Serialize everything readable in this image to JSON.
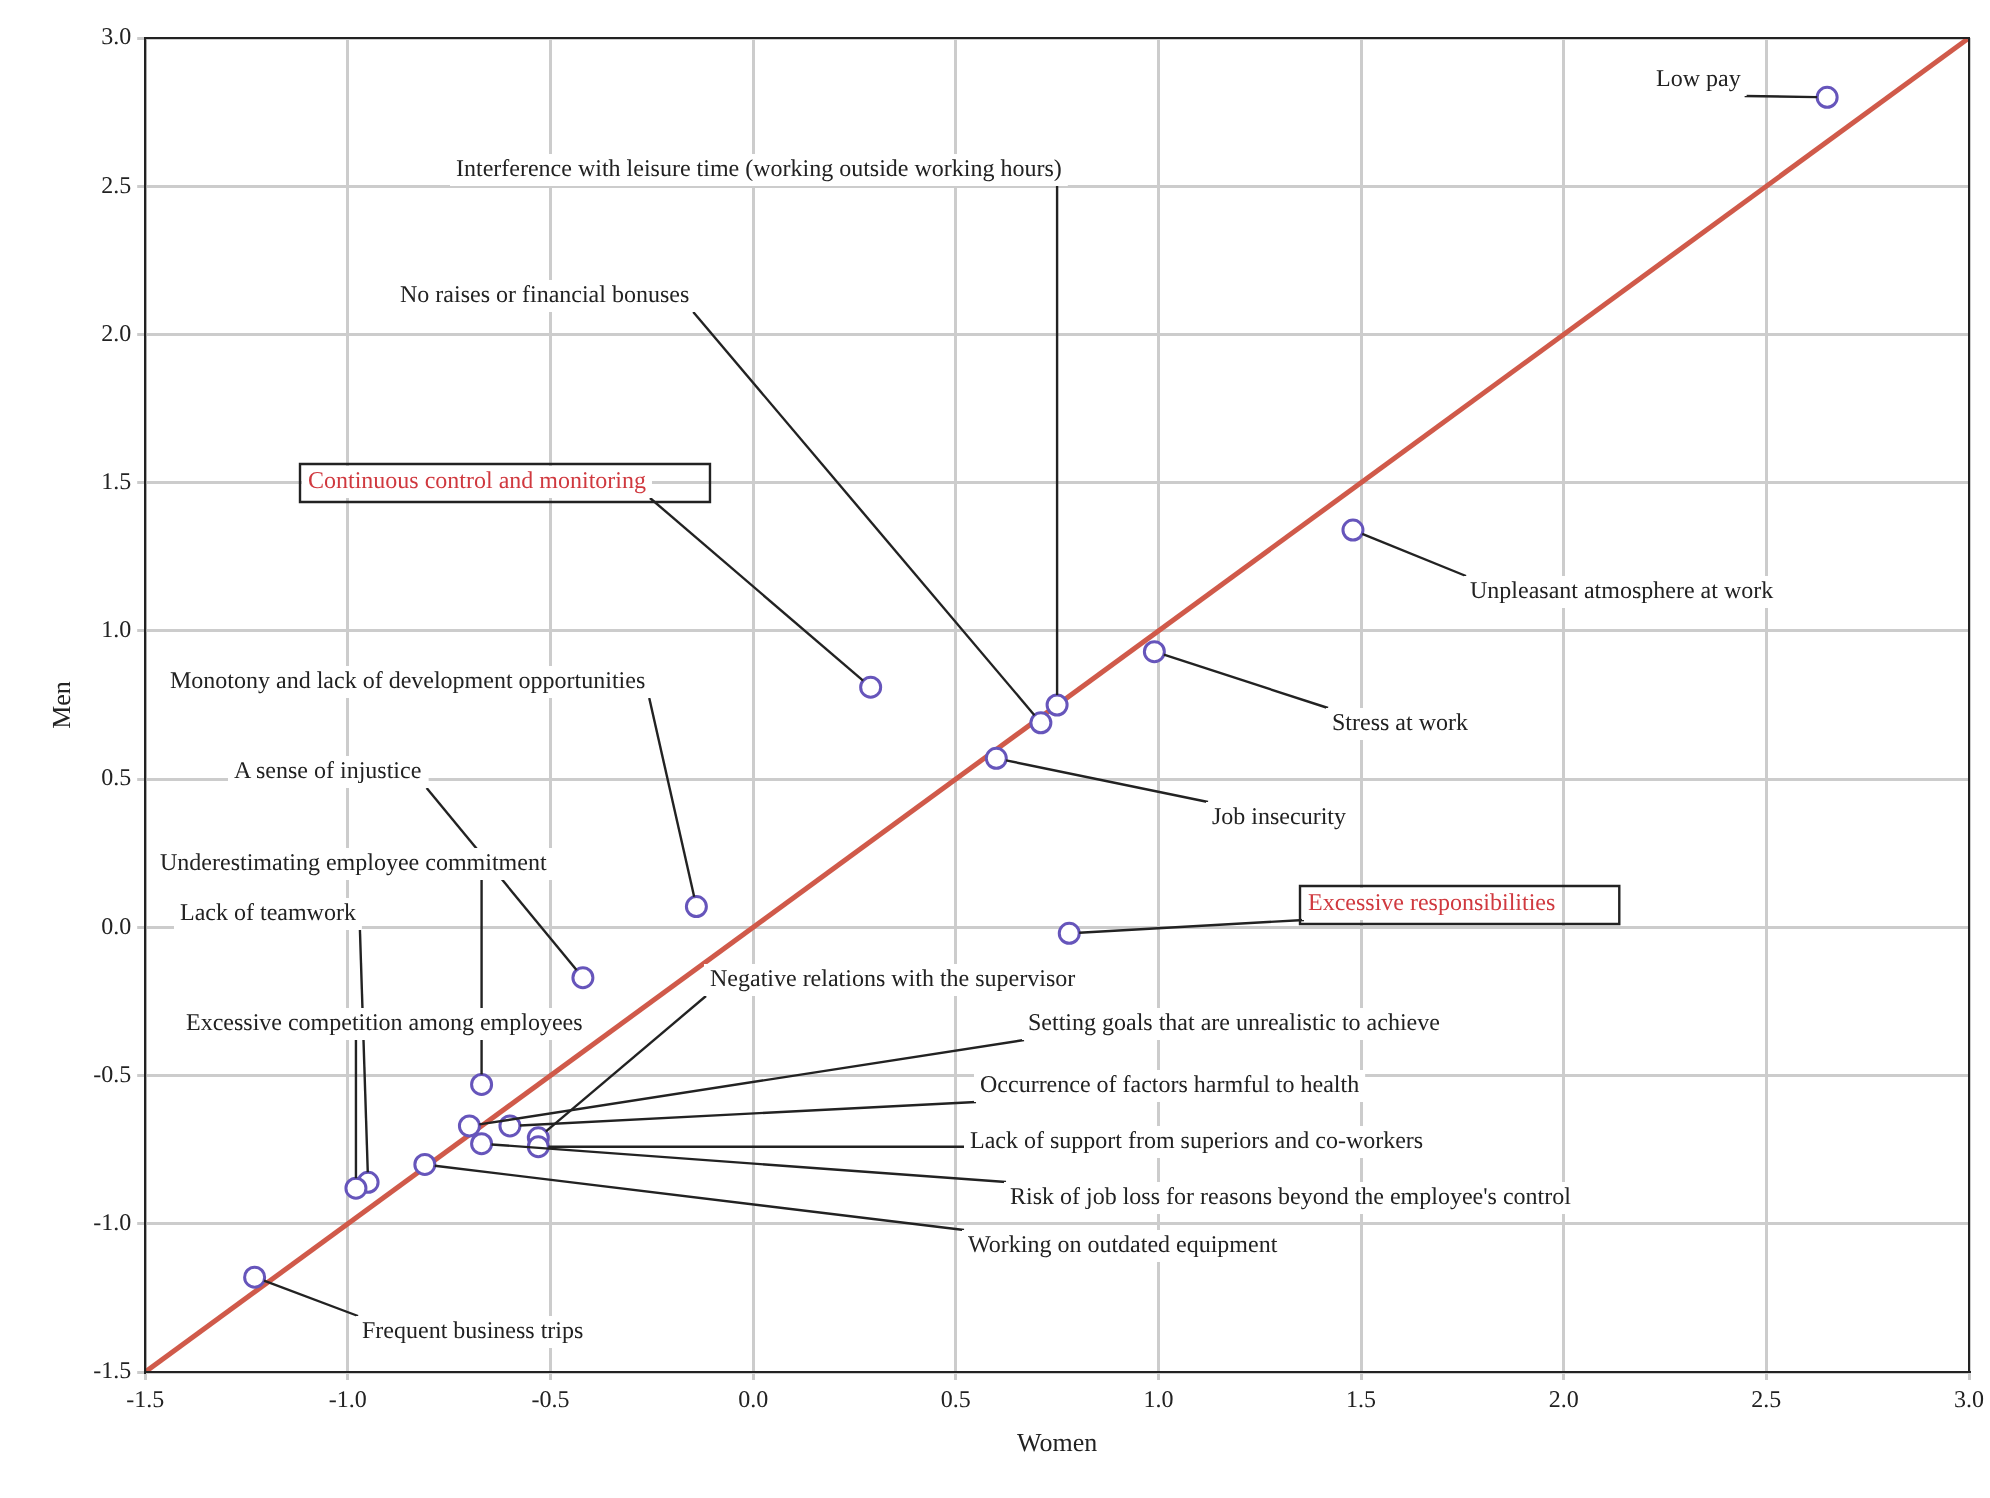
{
  "chart_data": {
    "type": "scatter",
    "xlabel": "Women",
    "ylabel": "Men",
    "xlim": [
      -1.5,
      3.0
    ],
    "ylim": [
      -1.5,
      3.0
    ],
    "xticks": [
      -1.5,
      {
        "value": -1,
        "label": "-1.0"
      },
      -0.5,
      {
        "value": 0,
        "label": "0.0"
      },
      0.5,
      {
        "value": 1,
        "label": "1.0"
      },
      1.5,
      {
        "value": 2,
        "label": "2.0"
      },
      2.5,
      {
        "value": 3,
        "label": "3.0"
      }
    ],
    "yticks": [
      -1.5,
      {
        "value": -1,
        "label": "-1.0"
      },
      -0.5,
      {
        "value": 0,
        "label": "0.0"
      },
      0.5,
      {
        "value": 1,
        "label": "1.0"
      },
      1.5,
      {
        "value": 2,
        "label": "2.0"
      },
      2.5,
      {
        "value": 3,
        "label": "3.0"
      }
    ],
    "grid": true,
    "marker": "circle",
    "series": [
      {
        "color": "#6655bb",
        "x": [
          2.65,
          1.48,
          0.99,
          0.75,
          0.71,
          0.6,
          0.29,
          0.78,
          -0.14,
          -0.42,
          -0.67,
          -0.53,
          -0.7,
          -0.6,
          -0.53,
          -0.67,
          -0.81,
          -0.95,
          -0.98,
          -1.23
        ],
        "values": [
          2.8,
          1.34,
          0.93,
          0.75,
          0.69,
          0.57,
          0.81,
          -0.02,
          0.07,
          -0.17,
          -0.53,
          -0.71,
          -0.67,
          -0.67,
          -0.74,
          -0.73,
          -0.8,
          -0.86,
          -0.88,
          -1.18
        ]
      },
      {
        "type": "line",
        "marker": "none",
        "color": "#d05a4a",
        "x": [
          -1.5,
          3.0
        ],
        "values": [
          -1.5,
          3.0
        ]
      }
    ],
    "annotations": [
      {
        "text": "Low pay",
        "x": 2.65,
        "y": 2.8
      },
      {
        "text": "Unpleasant atmosphere at work",
        "x": 1.48,
        "y": 1.34
      },
      {
        "text": "Stress at work",
        "x": 0.99,
        "y": 0.93
      },
      {
        "text": "Interference with leisure time (working outside working hours)",
        "x": 0.75,
        "y": 0.75
      },
      {
        "text": "No raises or financial bonuses",
        "x": 0.71,
        "y": 0.69
      },
      {
        "text": "Job insecurity",
        "x": 0.6,
        "y": 0.57
      },
      {
        "text": "Continuous control and monitoring",
        "x": 0.29,
        "y": 0.81
      },
      {
        "text": "Excessive responsibilities",
        "x": 0.78,
        "y": -0.02
      },
      {
        "text": "Monotony and lack of development opportunities",
        "x": -0.14,
        "y": 0.07
      },
      {
        "text": "A sense of injustice",
        "x": -0.42,
        "y": -0.17
      },
      {
        "text": "Underestimating employee commitment",
        "x": -0.67,
        "y": -0.53
      },
      {
        "text": "Negative relations with the supervisor",
        "x": -0.53,
        "y": -0.71
      },
      {
        "text": "Setting goals that are unrealistic to achieve",
        "x": -0.7,
        "y": -0.67
      },
      {
        "text": "Occurrence of factors harmful to health",
        "x": -0.6,
        "y": -0.67
      },
      {
        "text": "Lack of support from superiors and co-workers",
        "x": -0.53,
        "y": -0.74
      },
      {
        "text": "Risk of job loss for reasons beyond the employee's control",
        "x": -0.67,
        "y": -0.73
      },
      {
        "text": "Working on outdated equipment",
        "x": -0.81,
        "y": -0.8
      },
      {
        "text": "Lack of teamwork",
        "x": -0.95,
        "y": -0.86
      },
      {
        "text": "Excessive competition among employees",
        "x": -0.98,
        "y": -0.88
      },
      {
        "text": "Frequent business trips",
        "x": -1.23,
        "y": -1.18
      }
    ]
  }
}
